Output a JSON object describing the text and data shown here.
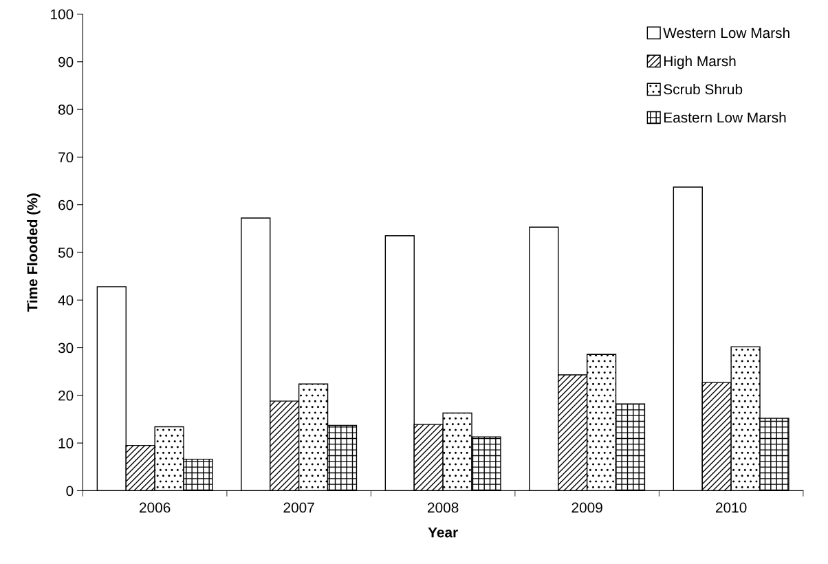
{
  "chart_data": {
    "type": "bar",
    "xlabel": "Year",
    "ylabel": "Time Flooded (%)",
    "categories": [
      "2006",
      "2007",
      "2008",
      "2009",
      "2010"
    ],
    "series": [
      {
        "name": "Western Low Marsh",
        "color": "#ffffff",
        "values": [
          42.8,
          57.2,
          53.5,
          55.3,
          63.7
        ]
      },
      {
        "name": "High Marsh",
        "color": "#000000",
        "values": [
          9.5,
          18.8,
          13.9,
          24.3,
          22.7
        ]
      },
      {
        "name": "Scrub Shrub",
        "color": "#000000",
        "values": [
          13.4,
          22.4,
          16.3,
          28.6,
          30.2
        ]
      },
      {
        "name": "Eastern Low Marsh",
        "color": "#000000",
        "values": [
          6.6,
          13.7,
          11.3,
          18.2,
          15.2
        ]
      }
    ],
    "ylim": [
      0,
      100
    ],
    "yticks": [
      0,
      10,
      20,
      30,
      40,
      50,
      60,
      70,
      80,
      90,
      100
    ],
    "grid": false,
    "legend": "top right"
  }
}
